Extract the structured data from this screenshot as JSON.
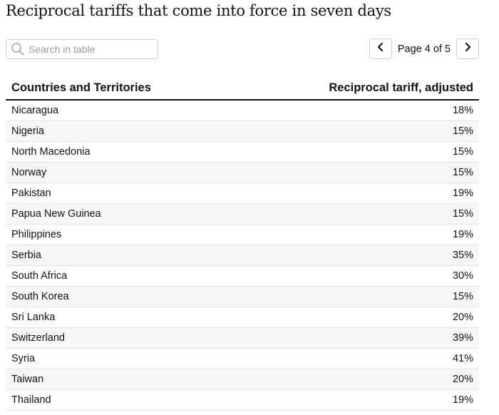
{
  "title": "Reciprocal tariffs that come into force in seven days",
  "search": {
    "placeholder": "Search in table",
    "value": ""
  },
  "pagination": {
    "label": "Page 4 of 5",
    "current_page": 4,
    "total_pages": 5,
    "prev_icon": "chevron-left-icon",
    "next_icon": "chevron-right-icon"
  },
  "table": {
    "columns": [
      "Countries and Territories",
      "Reciprocal tariff, adjusted"
    ],
    "rows": [
      {
        "country": "Nicaragua",
        "tariff": "18%"
      },
      {
        "country": "Nigeria",
        "tariff": "15%"
      },
      {
        "country": "North Macedonia",
        "tariff": "15%"
      },
      {
        "country": "Norway",
        "tariff": "15%"
      },
      {
        "country": "Pakistan",
        "tariff": "19%"
      },
      {
        "country": "Papua New Guinea",
        "tariff": "15%"
      },
      {
        "country": "Philippines",
        "tariff": "19%"
      },
      {
        "country": "Serbia",
        "tariff": "35%"
      },
      {
        "country": "South Africa",
        "tariff": "30%"
      },
      {
        "country": "South Korea",
        "tariff": "15%"
      },
      {
        "country": "Sri Lanka",
        "tariff": "20%"
      },
      {
        "country": "Switzerland",
        "tariff": "39%"
      },
      {
        "country": "Syria",
        "tariff": "41%"
      },
      {
        "country": "Taiwan",
        "tariff": "20%"
      },
      {
        "country": "Thailand",
        "tariff": "19%"
      }
    ]
  },
  "colors": {
    "text": "#121212",
    "row_stripe": "#f6f6f6",
    "border": "#cfcfcf",
    "placeholder": "#9a9a9a",
    "icon": "#9a9a9a"
  }
}
